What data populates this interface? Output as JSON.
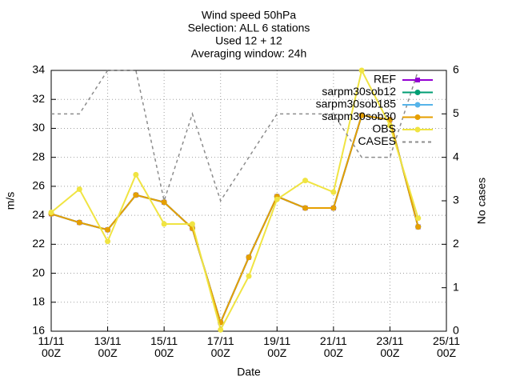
{
  "chart_data": {
    "type": "line",
    "title": [
      "Wind speed 50hPa",
      "Selection: ALL      6 stations",
      "Used 12 + 12",
      "Averaging window: 24h"
    ],
    "xlabel": "Date",
    "ylabel": "m/s",
    "y2label": "No cases",
    "categories": [
      "11/11\n00Z",
      null,
      "13/11\n00Z",
      null,
      "15/11\n00Z",
      null,
      "17/11\n00Z",
      null,
      "19/11\n00Z",
      null,
      "21/11\n00Z",
      null,
      "23/11\n00Z",
      null,
      "25/11\n00Z"
    ],
    "ylim": [
      16,
      34
    ],
    "yticks": [
      16,
      18,
      20,
      22,
      24,
      26,
      28,
      30,
      32,
      34
    ],
    "y2lim": [
      0,
      6
    ],
    "y2ticks": [
      0,
      1,
      2,
      3,
      4,
      5,
      6
    ],
    "grid": true,
    "legend": "top-right",
    "series": [
      {
        "name": "REF",
        "color": "#9400d3",
        "marker": "square",
        "values": [
          24.1,
          23.5,
          23.0,
          25.4,
          24.9,
          23.1,
          16.6,
          21.1,
          25.3,
          24.5,
          24.5,
          30.9,
          30.6,
          23.2,
          null
        ]
      },
      {
        "name": "sarpm30sob12",
        "color": "#009e73",
        "marker": "circle",
        "values": [
          24.1,
          23.5,
          23.0,
          25.4,
          24.9,
          23.1,
          16.6,
          21.1,
          25.3,
          24.5,
          24.5,
          30.9,
          30.6,
          23.2,
          null
        ]
      },
      {
        "name": "sarpm30sob185",
        "color": "#56b4e9",
        "marker": "circle",
        "values": [
          24.1,
          23.5,
          23.0,
          25.4,
          24.9,
          23.1,
          16.6,
          21.1,
          25.3,
          24.5,
          24.5,
          30.9,
          30.6,
          23.2,
          null
        ]
      },
      {
        "name": "sarpm30sob30",
        "color": "#e69f00",
        "marker": "circle",
        "values": [
          24.1,
          23.5,
          23.0,
          25.4,
          24.9,
          23.1,
          16.6,
          21.1,
          25.3,
          24.5,
          24.5,
          30.9,
          30.6,
          23.2,
          null
        ]
      },
      {
        "name": "OBS",
        "color": "#f0e442",
        "marker": "circle",
        "values": [
          24.2,
          25.8,
          22.2,
          26.8,
          23.4,
          23.4,
          16.1,
          19.8,
          25.1,
          26.4,
          25.6,
          34.0,
          30.2,
          23.8,
          null
        ]
      },
      {
        "name": "CASES",
        "color": "#8c8c8c",
        "marker": "none",
        "dashed": true,
        "axis": "y2",
        "values": [
          5,
          5,
          6,
          6,
          3,
          5,
          3,
          4,
          5,
          5,
          5,
          4,
          4,
          6,
          null
        ]
      }
    ]
  }
}
